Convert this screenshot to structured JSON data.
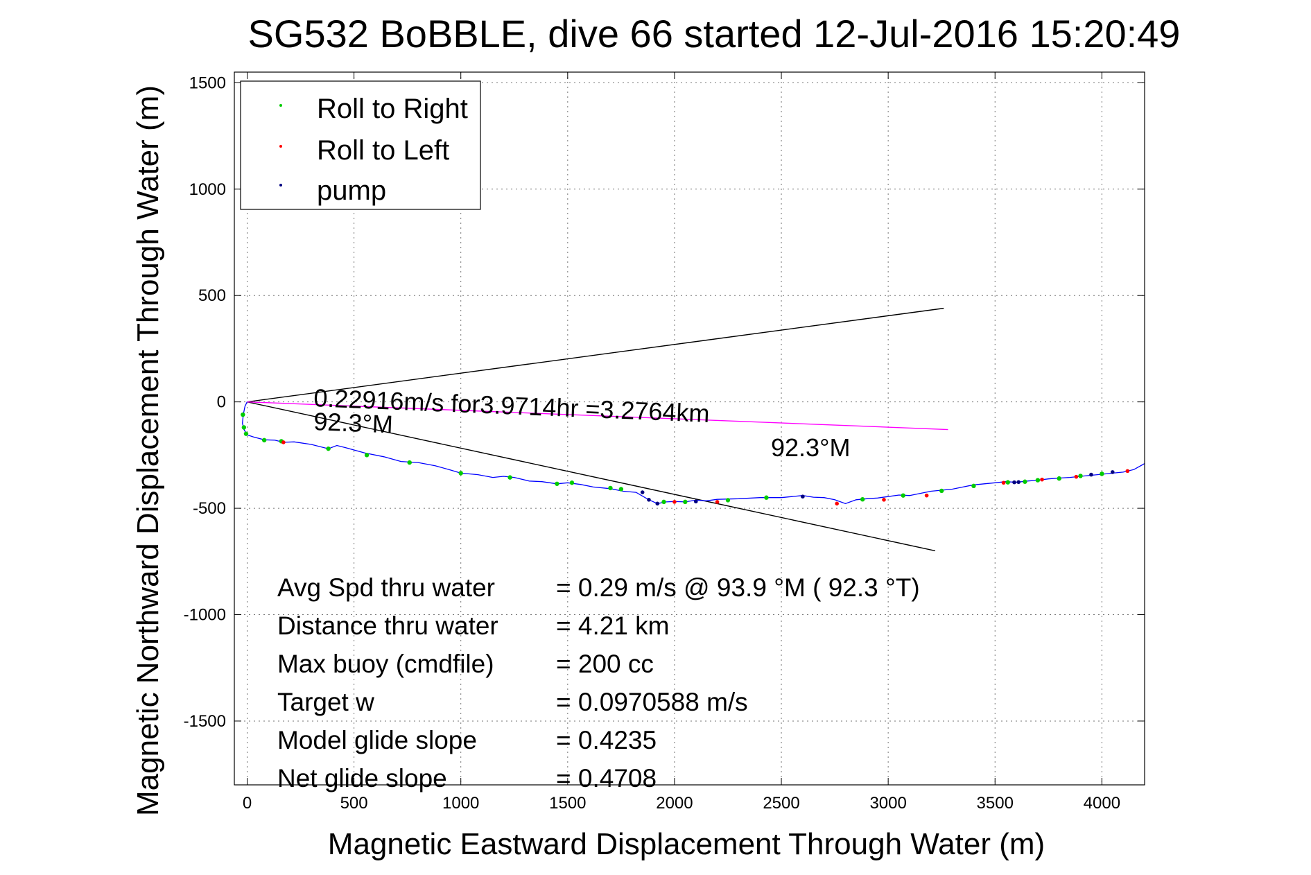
{
  "chart_data": {
    "type": "line",
    "title": "SG532 BoBBLE, dive 66 started 12-Jul-2016 15:20:49",
    "xlabel": "Magnetic Eastward Displacement Through Water (m)",
    "ylabel": "Magnetic Northward Displacement Through Water (m)",
    "xlim": [
      -60,
      4200
    ],
    "ylim": [
      -1800,
      1550
    ],
    "xticks": [
      0,
      500,
      1000,
      1500,
      2000,
      2500,
      3000,
      3500,
      4000
    ],
    "yticks": [
      1500,
      1000,
      500,
      0,
      -500,
      -1000,
      -1500
    ],
    "grid": true,
    "legend": {
      "placement": "top-left",
      "entries": [
        {
          "label": "Roll to Right",
          "color": "#00cc00"
        },
        {
          "label": "Roll to Left",
          "color": "#ff0000"
        },
        {
          "label": "pump",
          "color": "#000080"
        }
      ]
    },
    "track": {
      "color": "#0000ff",
      "x": [
        0,
        -10,
        -18,
        -22,
        -15,
        0,
        30,
        80,
        130,
        170,
        220,
        300,
        380,
        420,
        460,
        550,
        640,
        720,
        800,
        880,
        950,
        1000,
        1080,
        1150,
        1200,
        1250,
        1320,
        1380,
        1450,
        1500,
        1560,
        1620,
        1700,
        1760,
        1820,
        1880,
        1920,
        1960,
        2000,
        2050,
        2100,
        2150,
        2200,
        2300,
        2400,
        2500,
        2550,
        2600,
        2650,
        2700,
        2750,
        2800,
        2850,
        2900,
        2950,
        3000,
        3050,
        3100,
        3150,
        3200,
        3250,
        3300,
        3350,
        3400,
        3450,
        3500,
        3550,
        3600,
        3650,
        3700,
        3750,
        3800,
        3850,
        3900,
        3950,
        4000,
        4050,
        4100,
        4150,
        4200
      ],
      "y": [
        0,
        -20,
        -60,
        -100,
        -130,
        -155,
        -165,
        -178,
        -180,
        -190,
        -188,
        -200,
        -220,
        -205,
        -215,
        -240,
        -258,
        -280,
        -285,
        -300,
        -320,
        -335,
        -342,
        -355,
        -350,
        -355,
        -372,
        -375,
        -385,
        -380,
        -388,
        -400,
        -408,
        -420,
        -425,
        -460,
        -478,
        -470,
        -468,
        -470,
        -462,
        -465,
        -458,
        -455,
        -450,
        -450,
        -445,
        -440,
        -448,
        -450,
        -460,
        -478,
        -460,
        -455,
        -452,
        -445,
        -438,
        -440,
        -430,
        -420,
        -415,
        -410,
        -400,
        -390,
        -385,
        -380,
        -375,
        -378,
        -372,
        -368,
        -362,
        -358,
        -355,
        -350,
        -345,
        -340,
        -335,
        -330,
        -318,
        -290
      ]
    },
    "markers": {
      "right_x": [
        -20,
        -15,
        -5,
        80,
        160,
        380,
        560,
        760,
        1000,
        1230,
        1450,
        1520,
        1700,
        1750,
        1950,
        2050,
        2250,
        2430,
        2880,
        3070,
        3250,
        3400,
        3560,
        3640,
        3700,
        3800,
        3900,
        4000
      ],
      "right_y": [
        -60,
        -120,
        -150,
        -180,
        -185,
        -220,
        -250,
        -285,
        -335,
        -355,
        -385,
        -380,
        -405,
        -410,
        -470,
        -470,
        -462,
        -450,
        -458,
        -440,
        -418,
        -395,
        -378,
        -375,
        -368,
        -360,
        -348,
        -338
      ],
      "left_x": [
        170,
        2000,
        2200,
        2760,
        2980,
        3180,
        3540,
        3720,
        3880,
        4120
      ],
      "left_y": [
        -190,
        -470,
        -470,
        -478,
        -460,
        -440,
        -380,
        -365,
        -352,
        -325
      ],
      "pump_x": [
        1850,
        1880,
        1920,
        2100,
        2600,
        3590,
        3610,
        3950,
        4050
      ],
      "pump_y": [
        -425,
        -460,
        -478,
        -468,
        -445,
        -378,
        -377,
        -342,
        -330
      ]
    },
    "cone_lines": [
      {
        "x": [
          0,
          3260
        ],
        "y": [
          0,
          440
        ],
        "color": "#000000"
      },
      {
        "x": [
          0,
          3220
        ],
        "y": [
          0,
          -700
        ],
        "color": "#000000"
      }
    ],
    "heading_line": {
      "x": [
        0,
        3280
      ],
      "y": [
        0,
        -130
      ],
      "color": "#ff00ff"
    },
    "annotations": {
      "speed_text": "0.22916m/s for3.9714hr =3.2764km",
      "heading_text_1": "92.3°M",
      "heading_text_2": "92.3°M"
    },
    "stats": [
      {
        "label": "Avg Spd thru water",
        "value": "=  0.29 m/s @  93.9 °M ( 92.3 °T)"
      },
      {
        "label": "Distance thru water",
        "value": "=  4.21 km"
      },
      {
        "label": "Max buoy (cmdfile)",
        "value": "= 200 cc"
      },
      {
        "label": "Target w",
        "value": "= 0.0970588 m/s"
      },
      {
        "label": "Model glide slope",
        "value": "= 0.4235"
      },
      {
        "label": "Net glide slope",
        "value": "= 0.4708"
      }
    ]
  }
}
